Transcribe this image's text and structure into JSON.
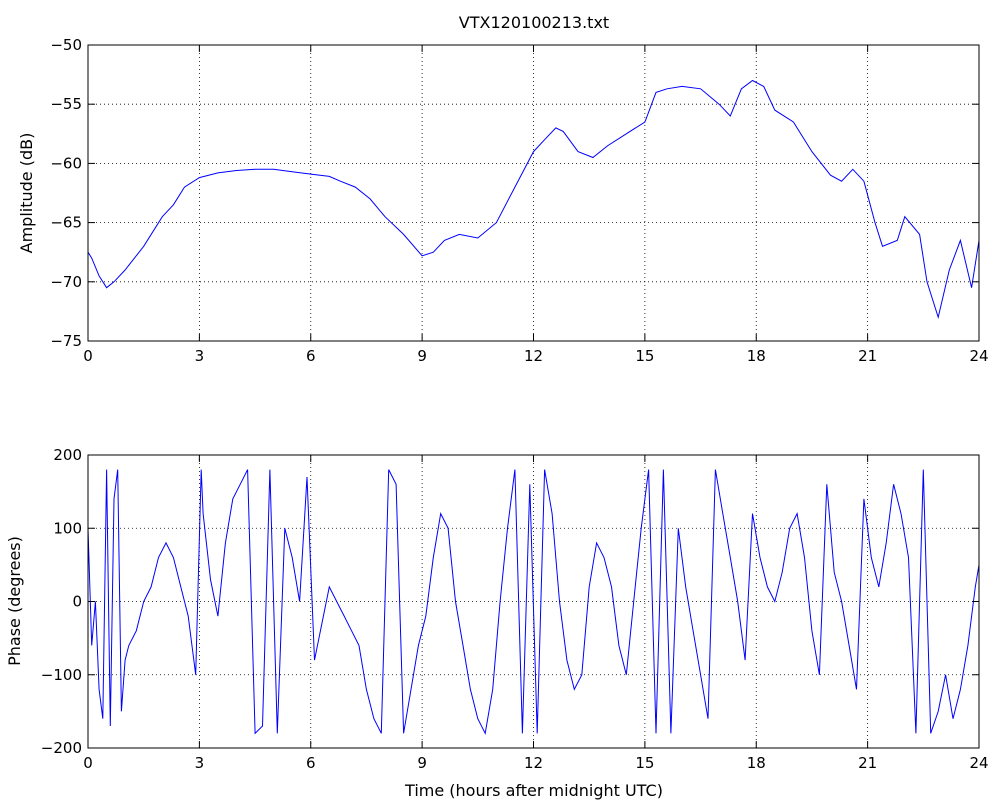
{
  "chart_data": [
    {
      "type": "line",
      "title": "VTX120100213.txt",
      "xlabel": "",
      "ylabel": "Amplitude (dB)",
      "xlim": [
        0,
        24
      ],
      "ylim": [
        -75,
        -50
      ],
      "xticks": [
        0,
        3,
        6,
        9,
        12,
        15,
        18,
        21,
        24
      ],
      "yticks": [
        -50,
        -55,
        -60,
        -65,
        -70,
        -75
      ],
      "grid": true,
      "color": "#0000ff",
      "series": [
        {
          "x": [
            0,
            0.1,
            0.3,
            0.5,
            0.7,
            1.0,
            1.5,
            2.0,
            2.3,
            2.6,
            3.0,
            3.5,
            4.0,
            4.5,
            5.0,
            5.5,
            6.0,
            6.5,
            6.8,
            7.2,
            7.6,
            8.0,
            8.5,
            9.0,
            9.3,
            9.6,
            10.0,
            10.5,
            11.0,
            11.5,
            12.0,
            12.3,
            12.6,
            12.8,
            13.2,
            13.6,
            14.0,
            14.5,
            15.0,
            15.3,
            15.6,
            16.0,
            16.5,
            17.0,
            17.3,
            17.6,
            17.9,
            18.2,
            18.5,
            19.0,
            19.5,
            20.0,
            20.3,
            20.6,
            20.9,
            21.2,
            21.4,
            21.8,
            22.0,
            22.4,
            22.6,
            22.9,
            23.2,
            23.5,
            23.8,
            24.0
          ],
          "y": [
            -67.5,
            -68,
            -69.5,
            -70.5,
            -70,
            -69,
            -67,
            -64.5,
            -63.5,
            -62,
            -61.2,
            -60.8,
            -60.6,
            -60.5,
            -60.5,
            -60.7,
            -60.9,
            -61.1,
            -61.5,
            -62,
            -63,
            -64.5,
            -66,
            -67.8,
            -67.5,
            -66.5,
            -66,
            -66.3,
            -65,
            -62,
            -59,
            -58,
            -57,
            -57.3,
            -59,
            -59.5,
            -58.5,
            -57.5,
            -56.5,
            -54,
            -53.7,
            -53.5,
            -53.7,
            -55,
            -56,
            -53.7,
            -53,
            -53.5,
            -55.5,
            -56.5,
            -59,
            -61,
            -61.5,
            -60.5,
            -61.5,
            -65,
            -67,
            -66.5,
            -64.5,
            -66,
            -70,
            -73,
            -69,
            -66.5,
            -70.5,
            -66.5
          ]
        }
      ]
    },
    {
      "type": "line",
      "title": "",
      "xlabel": "Time (hours after midnight UTC)",
      "ylabel": "Phase (degrees)",
      "xlim": [
        0,
        24
      ],
      "ylim": [
        -200,
        200
      ],
      "xticks": [
        0,
        3,
        6,
        9,
        12,
        15,
        18,
        21,
        24
      ],
      "yticks": [
        200,
        100,
        0,
        -100,
        -200
      ],
      "grid": true,
      "color": "#0000ff",
      "series": [
        {
          "x": [
            0,
            0.1,
            0.2,
            0.3,
            0.4,
            0.5,
            0.6,
            0.7,
            0.8,
            0.9,
            1.0,
            1.1,
            1.3,
            1.5,
            1.7,
            1.9,
            2.1,
            2.3,
            2.5,
            2.7,
            2.9,
            3.05,
            3.1,
            3.3,
            3.5,
            3.7,
            3.9,
            4.1,
            4.3,
            4.5,
            4.7,
            4.9,
            5.1,
            5.3,
            5.5,
            5.7,
            5.9,
            6.1,
            6.3,
            6.5,
            6.7,
            6.9,
            7.1,
            7.3,
            7.5,
            7.7,
            7.9,
            8.1,
            8.3,
            8.5,
            8.7,
            8.9,
            9.1,
            9.3,
            9.5,
            9.7,
            9.9,
            10.1,
            10.3,
            10.5,
            10.7,
            10.9,
            11.1,
            11.3,
            11.5,
            11.7,
            11.9,
            12.1,
            12.3,
            12.5,
            12.7,
            12.9,
            13.1,
            13.3,
            13.5,
            13.7,
            13.9,
            14.1,
            14.3,
            14.5,
            14.7,
            14.9,
            15.1,
            15.3,
            15.5,
            15.7,
            15.9,
            16.1,
            16.3,
            16.5,
            16.7,
            16.9,
            17.1,
            17.3,
            17.5,
            17.7,
            17.9,
            18.1,
            18.3,
            18.5,
            18.7,
            18.9,
            19.1,
            19.3,
            19.5,
            19.7,
            19.9,
            20.1,
            20.3,
            20.5,
            20.7,
            20.9,
            21.1,
            21.3,
            21.5,
            21.7,
            21.9,
            22.1,
            22.3,
            22.5,
            22.7,
            22.9,
            23.1,
            23.3,
            23.5,
            23.7,
            23.9,
            24.0
          ],
          "y": [
            100,
            -60,
            0,
            -120,
            -160,
            180,
            -170,
            140,
            180,
            -150,
            -80,
            -60,
            -40,
            0,
            20,
            60,
            80,
            60,
            20,
            -20,
            -100,
            180,
            120,
            30,
            -20,
            80,
            140,
            160,
            180,
            -180,
            -170,
            180,
            -180,
            100,
            60,
            0,
            170,
            -80,
            -30,
            20,
            0,
            -20,
            -40,
            -60,
            -120,
            -160,
            -180,
            180,
            160,
            -180,
            -120,
            -60,
            -20,
            60,
            120,
            100,
            0,
            -60,
            -120,
            -160,
            -180,
            -120,
            0,
            100,
            180,
            -180,
            160,
            -180,
            180,
            120,
            0,
            -80,
            -120,
            -100,
            20,
            80,
            60,
            20,
            -60,
            -100,
            0,
            100,
            180,
            -180,
            180,
            -180,
            100,
            20,
            -40,
            -100,
            -160,
            180,
            120,
            60,
            0,
            -80,
            120,
            60,
            20,
            0,
            40,
            100,
            120,
            60,
            -40,
            -100,
            160,
            40,
            0,
            -60,
            -120,
            140,
            60,
            20,
            80,
            160,
            120,
            60,
            -180,
            180,
            -180,
            -150,
            -100,
            -160,
            -120,
            -60,
            20,
            50
          ]
        }
      ]
    }
  ]
}
